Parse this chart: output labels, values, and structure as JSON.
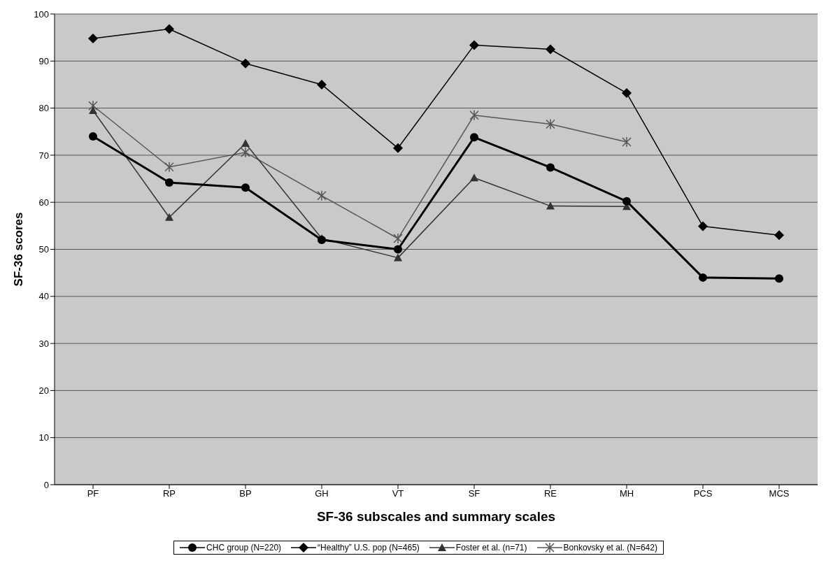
{
  "chart_data": {
    "type": "line",
    "xlabel": "SF-36 subscales and summary scales",
    "ylabel": "SF-36 scores",
    "categories": [
      "PF",
      "RP",
      "BP",
      "GH",
      "VT",
      "SF",
      "RE",
      "MH",
      "PCS",
      "MCS"
    ],
    "series": [
      {
        "name": "CHC group (N=220)",
        "color": "#000000",
        "marker": "circle",
        "values": [
          74,
          64.2,
          63.1,
          52,
          50,
          73.8,
          67.4,
          60.2,
          44,
          43.8
        ]
      },
      {
        "name": "“Healthy” U.S. pop (N=465)",
        "color": "#000000",
        "marker": "diamond",
        "values": [
          94.8,
          96.8,
          89.5,
          85,
          71.5,
          93.4,
          92.5,
          83.2,
          54.9,
          53
        ]
      },
      {
        "name": "Foster et al. (n=71)",
        "color": "#333333",
        "marker": "triangle",
        "values": [
          79.5,
          56.8,
          72.5,
          52.3,
          48.2,
          65.2,
          59.2,
          59.1,
          null,
          null
        ]
      },
      {
        "name": "Bonkovsky et al. (N=642)",
        "color": "#555555",
        "marker": "cross",
        "values": [
          80.5,
          67.5,
          70.6,
          61.4,
          52.3,
          78.5,
          76.6,
          72.8,
          null,
          null
        ]
      }
    ],
    "ylim": [
      0,
      100
    ],
    "yticks": [
      0,
      10,
      20,
      30,
      40,
      50,
      60,
      70,
      80,
      90,
      100
    ],
    "grid": "y",
    "legend": "bottom",
    "line_style": "solid"
  }
}
